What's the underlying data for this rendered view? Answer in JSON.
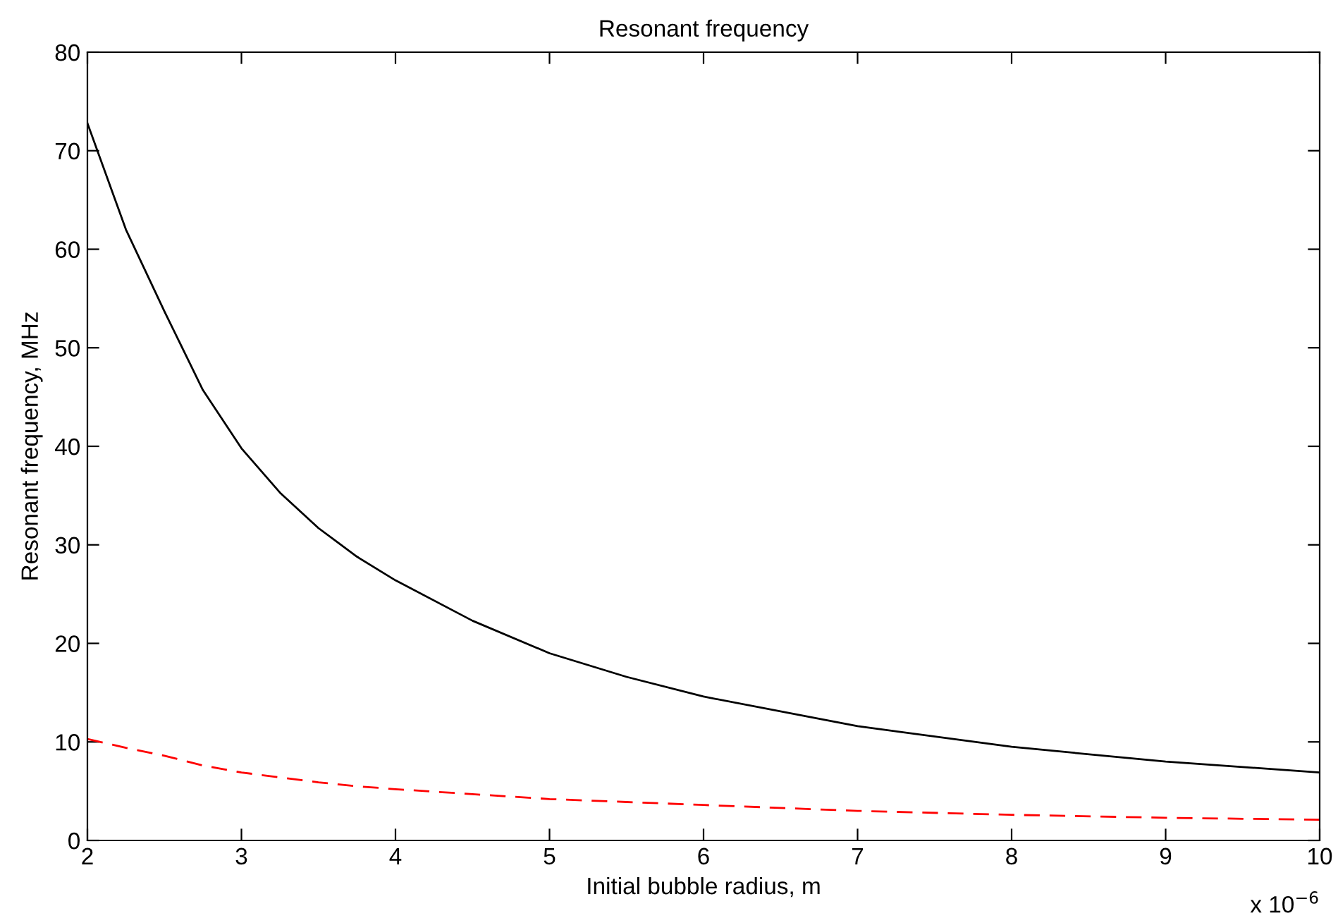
{
  "chart_data": {
    "type": "line",
    "title": "Resonant frequency",
    "xlabel": "Initial bubble radius, m",
    "ylabel": "Resonant frequency, MHz",
    "x": [
      2,
      2.25,
      2.5,
      2.75,
      3,
      3.25,
      3.5,
      3.75,
      4,
      4.5,
      5,
      5.5,
      6,
      7,
      8,
      9,
      10
    ],
    "series": [
      {
        "color": "#000000",
        "line_style": "solid",
        "values": [
          72.8,
          62.0,
          53.7,
          45.7,
          39.8,
          35.3,
          31.7,
          28.8,
          26.4,
          22.3,
          19.0,
          16.6,
          14.6,
          11.6,
          9.5,
          8.0,
          6.9
        ]
      },
      {
        "color": "#ff0000",
        "line_style": "dashed",
        "values": [
          10.3,
          9.4,
          8.6,
          7.6,
          6.9,
          6.4,
          5.9,
          5.5,
          5.2,
          4.7,
          4.2,
          3.9,
          3.6,
          3.0,
          2.6,
          2.3,
          2.1
        ]
      }
    ],
    "xlim": [
      2,
      10
    ],
    "xticks": [
      2,
      3,
      4,
      5,
      6,
      7,
      8,
      9,
      10
    ],
    "ylim": [
      0,
      80
    ],
    "yticks": [
      0,
      10,
      20,
      30,
      40,
      50,
      60,
      70,
      80
    ],
    "grid": false,
    "marker": "none",
    "annotations": [
      "x 10$^{−6}$"
    ]
  }
}
